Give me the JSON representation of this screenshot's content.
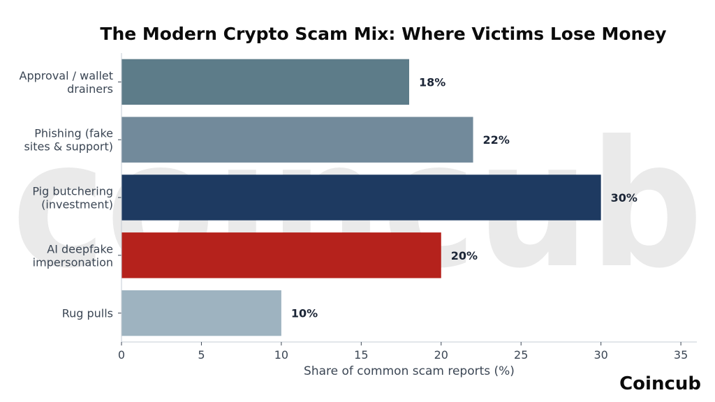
{
  "chart_data": {
    "type": "bar",
    "orientation": "horizontal",
    "title": "The Modern Crypto Scam Mix: Where Victims Lose Money",
    "xlabel": "Share of common scam reports (%)",
    "ylabel": "",
    "xlim": [
      0,
      36
    ],
    "xticks": [
      "0",
      "5",
      "10",
      "15",
      "20",
      "25",
      "30",
      "35"
    ],
    "xtick_values": [
      0,
      5,
      10,
      15,
      20,
      25,
      30,
      35
    ],
    "grid": false,
    "categories": [
      [
        "Approval / wallet",
        "drainers"
      ],
      [
        "Phishing (fake",
        "sites & support)"
      ],
      [
        "Pig butchering",
        "(investment)"
      ],
      [
        "AI deepfake",
        "impersonation"
      ],
      [
        "Rug pulls"
      ]
    ],
    "values": [
      18,
      22,
      30,
      20,
      10
    ],
    "data_labels": [
      "18%",
      "22%",
      "30%",
      "20%",
      "10%"
    ],
    "colors": [
      "#5d7c89",
      "#728a9b",
      "#1e3a61",
      "#b5221c",
      "#9eb3c0"
    ]
  },
  "branding": {
    "logo_text": "Coincub",
    "watermark_text": "coincub"
  }
}
